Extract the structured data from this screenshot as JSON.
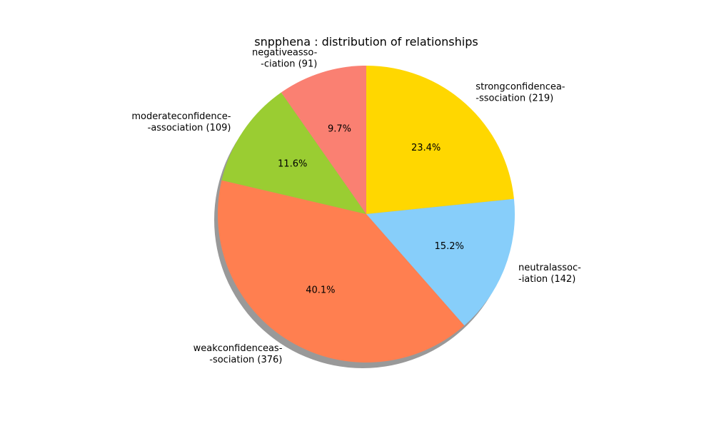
{
  "chart_data": {
    "type": "pie",
    "title": "snpphena : distribution of relationships",
    "start_angle_deg": 90,
    "direction": "clockwise",
    "shadow": true,
    "slices": [
      {
        "label_lines": [
          "strongconfidencea-",
          "-ssociation  (219)"
        ],
        "value": 219,
        "percent_label": "23.4%",
        "color": "#ffd700"
      },
      {
        "label_lines": [
          "neutralassoc-",
          "-iation  (142)"
        ],
        "value": 142,
        "percent_label": "15.2%",
        "color": "#87cefa"
      },
      {
        "label_lines": [
          "weakconfidenceas-",
          "-sociation  (376)"
        ],
        "value": 376,
        "percent_label": "40.1%",
        "color": "#ff7f50"
      },
      {
        "label_lines": [
          "moderateconfidence-",
          "-association  (109)"
        ],
        "value": 109,
        "percent_label": "11.6%",
        "color": "#9acd32"
      },
      {
        "label_lines": [
          "negativeasso-",
          "-ciation  (91)"
        ],
        "value": 91,
        "percent_label": "9.7%",
        "color": "#fa8072"
      }
    ]
  }
}
